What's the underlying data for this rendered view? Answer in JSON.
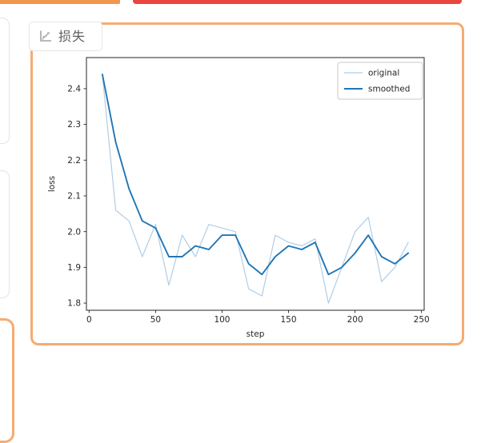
{
  "accents": {
    "top_left_bar_color": "#f0964e",
    "top_red_bar_color": "#e9463f",
    "panel_border_color": "#f6ab72"
  },
  "tab": {
    "label": "损失",
    "icon": "scatter-chart-icon"
  },
  "chart_data": {
    "type": "line",
    "title": "",
    "xlabel": "step",
    "ylabel": "loss",
    "grid": false,
    "xlim": [
      -2,
      252
    ],
    "ylim": [
      1.78,
      2.487
    ],
    "xticks": [
      0,
      50,
      100,
      150,
      200,
      250
    ],
    "yticks": [
      1.8,
      1.9,
      2.0,
      2.1,
      2.2,
      2.3,
      2.4
    ],
    "x": [
      10,
      20,
      30,
      40,
      50,
      60,
      70,
      80,
      90,
      100,
      110,
      120,
      130,
      140,
      150,
      160,
      170,
      180,
      190,
      200,
      210,
      220,
      230,
      240
    ],
    "series": [
      {
        "name": "original",
        "color": "#afcde6",
        "width": 1.2,
        "values": [
          2.44,
          2.06,
          2.03,
          1.93,
          2.02,
          1.85,
          1.99,
          1.93,
          2.02,
          2.01,
          2.0,
          1.84,
          1.82,
          1.99,
          1.97,
          1.96,
          1.98,
          1.8,
          1.9,
          2.0,
          2.04,
          1.86,
          1.9,
          1.97
        ]
      },
      {
        "name": "smoothed",
        "color": "#2176b5",
        "width": 1.9,
        "values": [
          2.44,
          2.25,
          2.12,
          2.03,
          2.01,
          1.93,
          1.93,
          1.96,
          1.95,
          1.99,
          1.99,
          1.91,
          1.88,
          1.93,
          1.96,
          1.95,
          1.97,
          1.88,
          1.9,
          1.94,
          1.99,
          1.93,
          1.91,
          1.94
        ]
      }
    ],
    "legend": {
      "position": "upper right",
      "entries": [
        "original",
        "smoothed"
      ]
    }
  }
}
